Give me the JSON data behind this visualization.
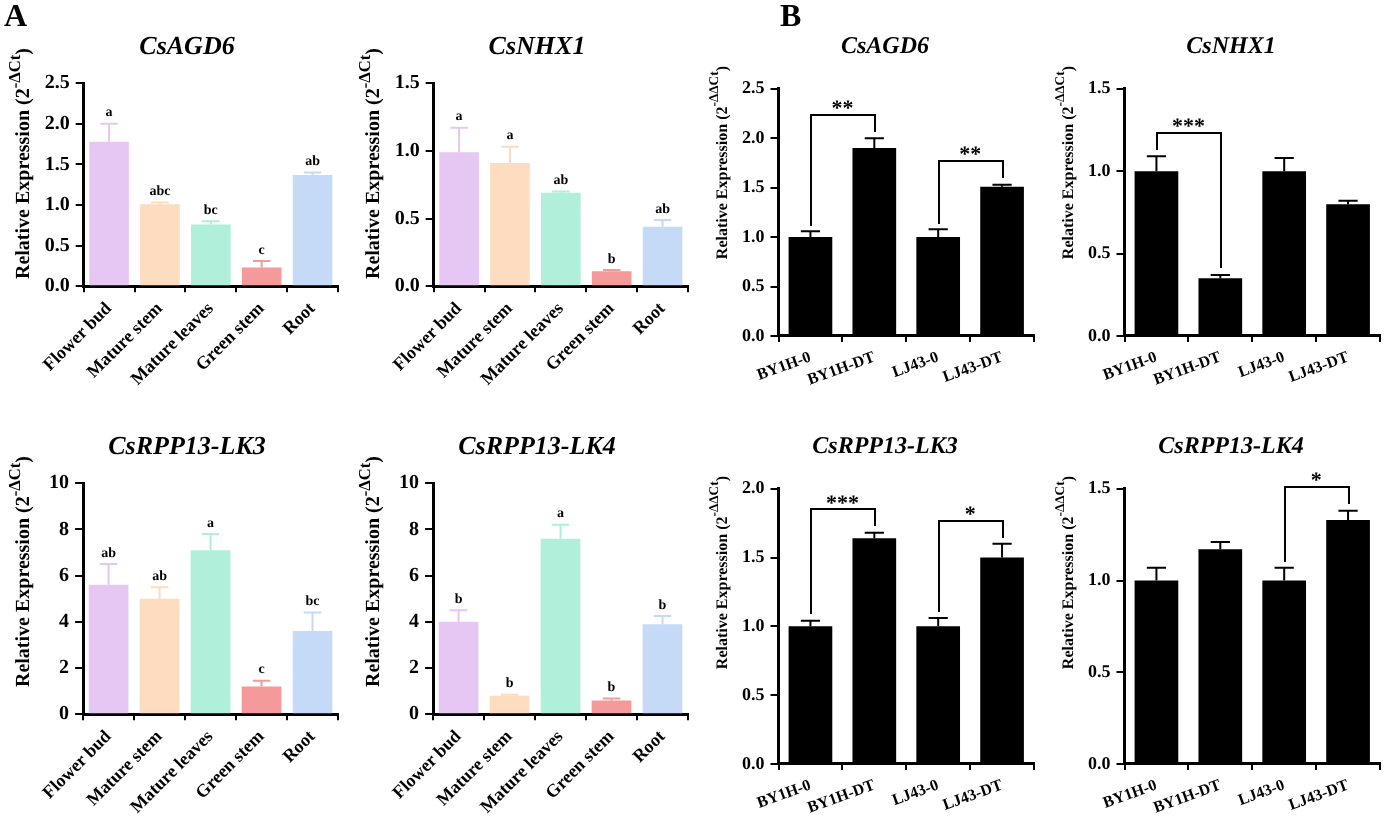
{
  "chart_data": [
    {
      "type": "bar",
      "title": "CsAGD6",
      "ylabel": "Relative Expression (2$^{-ΔCt}$)",
      "annotations": [
        "A"
      ],
      "categories": [
        "Flower bud",
        "Mature stem",
        "Mature leaves",
        "Green stem",
        "Root"
      ],
      "values": [
        1.78,
        1.01,
        0.76,
        0.23,
        1.37
      ],
      "errors": [
        [
          1.78,
          2.0
        ],
        [
          1.01,
          1.03
        ],
        [
          0.76,
          0.8
        ],
        [
          0.23,
          0.31
        ],
        [
          1.37,
          1.4
        ]
      ],
      "value_labels": [
        "a",
        "abc",
        "bc",
        "c",
        "ab"
      ],
      "colors": [
        "#e6c6f2",
        "#fddcbf",
        "#b0f0da",
        "#f49a9a",
        "#c4daf6"
      ],
      "ylim": [
        0,
        2.5
      ],
      "yticks": [
        {
          "value": 0,
          "label": "0.0"
        },
        0.5,
        {
          "value": 1,
          "label": "1.0"
        },
        1.5,
        {
          "value": 2,
          "label": "2.0"
        },
        2.5
      ]
    },
    {
      "type": "bar",
      "title": "CsNHX1",
      "ylabel": "Relative Expression (2$^{-ΔCt}$)",
      "categories": [
        "Flower bud",
        "Mature stem",
        "Mature leaves",
        "Green stem",
        "Root"
      ],
      "values": [
        0.99,
        0.91,
        0.69,
        0.11,
        0.44
      ],
      "errors": [
        [
          0.99,
          1.17
        ],
        [
          0.91,
          1.03
        ],
        [
          0.69,
          0.7
        ],
        [
          0.11,
          0.12
        ],
        [
          0.44,
          0.49
        ]
      ],
      "value_labels": [
        "a",
        "a",
        "ab",
        "b",
        "ab"
      ],
      "colors": [
        "#e6c6f2",
        "#fddcbf",
        "#b0f0da",
        "#f49a9a",
        "#c4daf6"
      ],
      "ylim": [
        0,
        1.5
      ],
      "yticks": [
        {
          "value": 0,
          "label": "0.0"
        },
        0.5,
        {
          "value": 1,
          "label": "1.0"
        },
        1.5
      ]
    },
    {
      "type": "bar",
      "title": "CsRPP13-LK3",
      "ylabel": "Relative Expression (2$^{-ΔCt}$)",
      "categories": [
        "Flower bud",
        "Mature stem",
        "Mature leaves",
        "Green stem",
        "Root"
      ],
      "values": [
        5.6,
        5.0,
        7.1,
        1.2,
        3.6
      ],
      "errors": [
        [
          5.6,
          6.5
        ],
        [
          5.0,
          5.5
        ],
        [
          7.1,
          7.8
        ],
        [
          1.2,
          1.45
        ],
        [
          3.6,
          4.4
        ]
      ],
      "value_labels": [
        "ab",
        "ab",
        "a",
        "c",
        "bc"
      ],
      "colors": [
        "#e6c6f2",
        "#fddcbf",
        "#b0f0da",
        "#f49a9a",
        "#c4daf6"
      ],
      "ylim": [
        0,
        10
      ],
      "yticks": [
        0,
        2,
        4,
        6,
        8,
        10
      ]
    },
    {
      "type": "bar",
      "title": "CsRPP13-LK4",
      "ylabel": "Relative Expression (2$^{-ΔCt}$)",
      "categories": [
        "Flower bud",
        "Mature stem",
        "Mature leaves",
        "Green stem",
        "Root"
      ],
      "values": [
        4.0,
        0.8,
        7.6,
        0.6,
        3.9
      ],
      "errors": [
        [
          4.0,
          4.5
        ],
        [
          0.8,
          0.85
        ],
        [
          7.6,
          8.2
        ],
        [
          0.6,
          0.68
        ],
        [
          3.9,
          4.25
        ]
      ],
      "value_labels": [
        "b",
        "b",
        "a",
        "b",
        "b"
      ],
      "colors": [
        "#e6c6f2",
        "#fddcbf",
        "#b0f0da",
        "#f49a9a",
        "#c4daf6"
      ],
      "ylim": [
        0,
        10
      ],
      "yticks": [
        0,
        2,
        4,
        6,
        8,
        10
      ]
    },
    {
      "type": "bar",
      "title": "CsAGD6",
      "ylabel": "Relative Expression (2$^{-ΔΔCt}$)",
      "annotations": [
        "B",
        {
          "text": "**",
          "x": "BY1H-DT",
          "y": 2.0
        },
        {
          "text": "**",
          "x": "LJ43-DT",
          "y": 1.53
        }
      ],
      "categories": [
        "BY1H-0",
        "BY1H-DT",
        "LJ43-0",
        "LJ43-DT"
      ],
      "values": [
        1.0,
        1.9,
        1.0,
        1.51
      ],
      "errors": [
        [
          1.0,
          1.06
        ],
        [
          1.9,
          2.0
        ],
        [
          1.0,
          1.08
        ],
        [
          1.51,
          1.53
        ]
      ],
      "color": "#000000",
      "ylim": [
        0,
        2.5
      ],
      "yticks": [
        {
          "value": 0,
          "label": "0.0"
        },
        0.5,
        {
          "value": 1,
          "label": "1.0"
        },
        1.5,
        {
          "value": 2,
          "label": "2.0"
        },
        2.5
      ]
    },
    {
      "type": "bar",
      "title": "CsNHX1",
      "ylabel": "Relative Expression (2$^{-ΔΔCt}$)",
      "annotations": [
        {
          "text": "***",
          "x": "BY1H-0",
          "y": 1.09
        }
      ],
      "categories": [
        "BY1H-0",
        "BY1H-DT",
        "LJ43-0",
        "LJ43-DT"
      ],
      "values": [
        1.0,
        0.35,
        1.0,
        0.8
      ],
      "errors": [
        [
          1.0,
          1.09
        ],
        [
          0.35,
          0.37
        ],
        [
          1.0,
          1.08
        ],
        [
          0.8,
          0.82
        ]
      ],
      "color": "#000000",
      "ylim": [
        0,
        1.5
      ],
      "yticks": [
        {
          "value": 0,
          "label": "0.0"
        },
        0.5,
        {
          "value": 1,
          "label": "1.0"
        },
        1.5
      ]
    },
    {
      "type": "bar",
      "title": "CsRPP13-LK3",
      "ylabel": "Relative Expression (2$^{-ΔΔCt}$)",
      "annotations": [
        {
          "text": "***",
          "x": "BY1H-DT",
          "y": 1.68
        },
        {
          "text": "*",
          "x": "LJ43-DT",
          "y": 1.6
        }
      ],
      "categories": [
        "BY1H-0",
        "BY1H-DT",
        "LJ43-0",
        "LJ43-DT"
      ],
      "values": [
        1.0,
        1.64,
        1.0,
        1.5
      ],
      "errors": [
        [
          1.0,
          1.04
        ],
        [
          1.64,
          1.68
        ],
        [
          1.0,
          1.06
        ],
        [
          1.5,
          1.6
        ]
      ],
      "color": "#000000",
      "ylim": [
        0,
        2
      ],
      "yticks": [
        {
          "value": 0,
          "label": "0.0"
        },
        0.5,
        {
          "value": 1,
          "label": "1.0"
        },
        1.5,
        {
          "value": 2,
          "label": "2.0"
        }
      ]
    },
    {
      "type": "bar",
      "title": "CsRPP13-LK4",
      "ylabel": "Relative Expression (2$^{-ΔΔCt}$)",
      "annotations": [
        {
          "text": "*",
          "x": "LJ43-DT",
          "y": 1.38
        }
      ],
      "categories": [
        "BY1H-0",
        "BY1H-DT",
        "LJ43-0",
        "LJ43-DT"
      ],
      "values": [
        1.0,
        1.17,
        1.0,
        1.33
      ],
      "errors": [
        [
          1.0,
          1.07
        ],
        [
          1.17,
          1.21
        ],
        [
          1.0,
          1.07
        ],
        [
          1.33,
          1.38
        ]
      ],
      "color": "#000000",
      "ylim": [
        0,
        1.5
      ],
      "yticks": [
        {
          "value": 0,
          "label": "0.0"
        },
        0.5,
        {
          "value": 1,
          "label": "1.0"
        },
        1.5
      ]
    }
  ]
}
